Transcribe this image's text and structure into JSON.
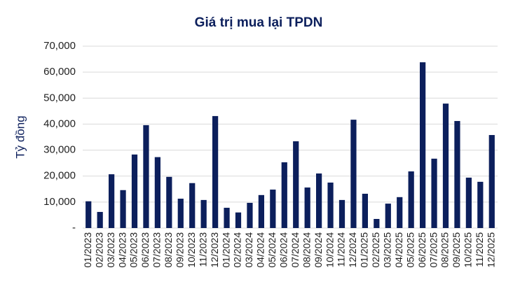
{
  "chart_data": {
    "type": "bar",
    "title": "Giá trị mua lại TPDN",
    "y_label": "Tỷ đồng",
    "categories": [
      "01/2023",
      "02/2023",
      "03/2023",
      "04/2023",
      "05/2023",
      "06/2023",
      "07/2023",
      "08/2023",
      "09/2023",
      "10/2023",
      "11/2023",
      "12/2023",
      "01/2024",
      "02/2024",
      "03/2024",
      "04/2024",
      "05/2024",
      "06/2024",
      "07/2024",
      "08/2024",
      "09/2024",
      "10/2024",
      "11/2024",
      "12/2024",
      "01/2025",
      "02/2025",
      "03/2025",
      "04/2025",
      "05/2025",
      "06/2025",
      "07/2025",
      "08/2025",
      "09/2025",
      "10/2025",
      "11/2025",
      "12/2025"
    ],
    "values": [
      10300,
      6200,
      20700,
      14600,
      28300,
      39600,
      27300,
      19700,
      11300,
      17300,
      10800,
      43100,
      7800,
      6000,
      9700,
      12700,
      14800,
      25300,
      33400,
      15600,
      21000,
      17500,
      10800,
      41700,
      13200,
      3500,
      9400,
      11900,
      21800,
      63800,
      26700,
      47900,
      41200,
      19400,
      17800,
      35800
    ],
    "color": "#0c1f5c",
    "ylim": [
      0,
      70000
    ],
    "yticks": [
      {
        "value": 0,
        "label": "-"
      },
      {
        "value": 10000,
        "label": "10,000"
      },
      {
        "value": 20000,
        "label": "20,000"
      },
      {
        "value": 30000,
        "label": "30,000"
      },
      {
        "value": 40000,
        "label": "40,000"
      },
      {
        "value": 50000,
        "label": "50,000"
      },
      {
        "value": 60000,
        "label": "60,000"
      },
      {
        "value": 70000,
        "label": "70,000"
      }
    ],
    "grid": true
  }
}
